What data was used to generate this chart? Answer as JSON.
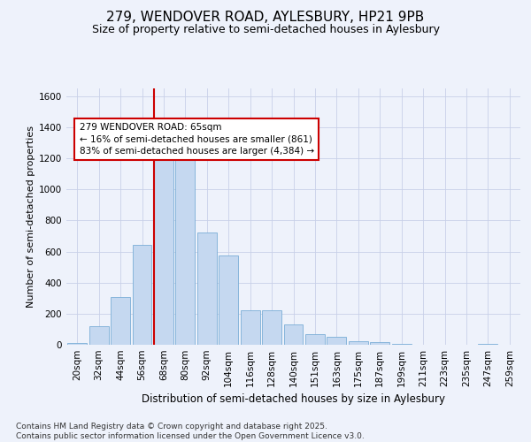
{
  "title1": "279, WENDOVER ROAD, AYLESBURY, HP21 9PB",
  "title2": "Size of property relative to semi-detached houses in Aylesbury",
  "xlabel": "Distribution of semi-detached houses by size in Aylesbury",
  "ylabel": "Number of semi-detached properties",
  "categories": [
    "20sqm",
    "32sqm",
    "44sqm",
    "56sqm",
    "68sqm",
    "80sqm",
    "92sqm",
    "104sqm",
    "116sqm",
    "128sqm",
    "140sqm",
    "151sqm",
    "163sqm",
    "175sqm",
    "187sqm",
    "199sqm",
    "211sqm",
    "223sqm",
    "235sqm",
    "247sqm",
    "259sqm"
  ],
  "values": [
    10,
    120,
    310,
    645,
    1210,
    1235,
    725,
    575,
    220,
    220,
    130,
    70,
    50,
    25,
    18,
    5,
    0,
    0,
    0,
    5,
    0
  ],
  "bar_color": "#c5d8f0",
  "bar_edge_color": "#7aaed6",
  "vline_color": "#cc0000",
  "vline_x_index": 4,
  "annotation_text": "279 WENDOVER ROAD: 65sqm\n← 16% of semi-detached houses are smaller (861)\n83% of semi-detached houses are larger (4,384) →",
  "annotation_box_facecolor": "#ffffff",
  "annotation_box_edgecolor": "#cc0000",
  "ylim": [
    0,
    1650
  ],
  "yticks": [
    0,
    200,
    400,
    600,
    800,
    1000,
    1200,
    1400,
    1600
  ],
  "bg_color": "#eef2fb",
  "plot_bg_color": "#eef2fb",
  "grid_color": "#c8d0e8",
  "footer": "Contains HM Land Registry data © Crown copyright and database right 2025.\nContains public sector information licensed under the Open Government Licence v3.0.",
  "title1_fontsize": 11,
  "title2_fontsize": 9,
  "tick_fontsize": 7.5,
  "ylabel_fontsize": 8,
  "xlabel_fontsize": 8.5,
  "footer_fontsize": 6.5,
  "annot_fontsize": 7.5
}
